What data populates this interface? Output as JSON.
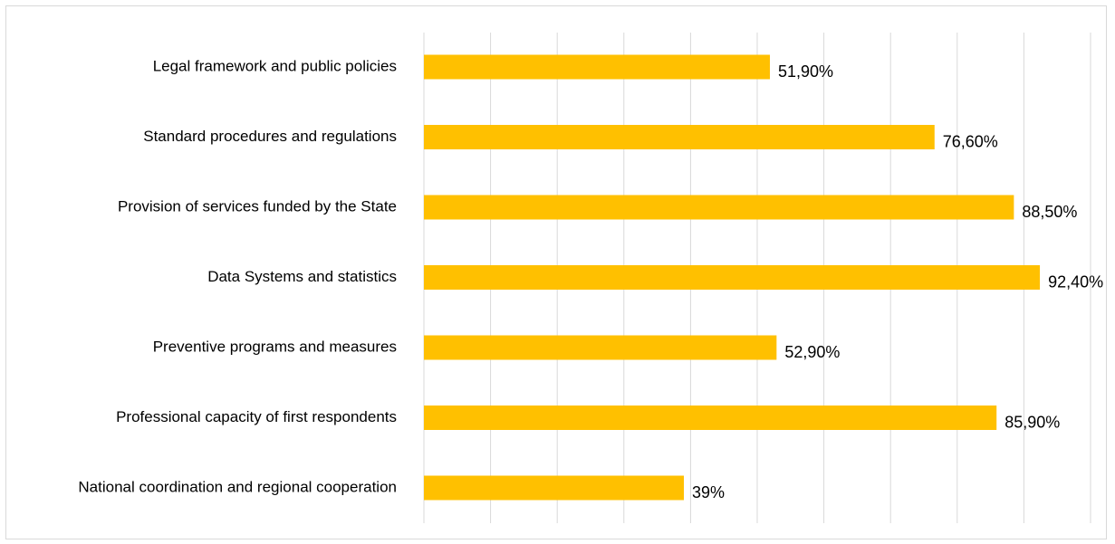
{
  "chart_data": {
    "type": "bar",
    "orientation": "horizontal",
    "categories": [
      "Legal framework and public policies",
      "Standard procedures and regulations",
      "Provision of services funded by the State",
      "Data Systems and statistics",
      "Preventive programs and measures",
      "Professional capacity of first respondents",
      "National coordination and regional cooperation"
    ],
    "values": [
      51.9,
      76.6,
      88.5,
      92.4,
      52.9,
      85.9,
      39
    ],
    "value_labels": [
      "51,90%",
      "76,60%",
      "88,50%",
      "92,40%",
      "52,90%",
      "85,90%",
      "39%"
    ],
    "xlim": [
      0,
      100
    ],
    "grid": true,
    "gridline_count": 11,
    "bar_color": "#FFC000",
    "grid_color": "#d9d9d9",
    "title": "",
    "xlabel": "",
    "ylabel": ""
  }
}
